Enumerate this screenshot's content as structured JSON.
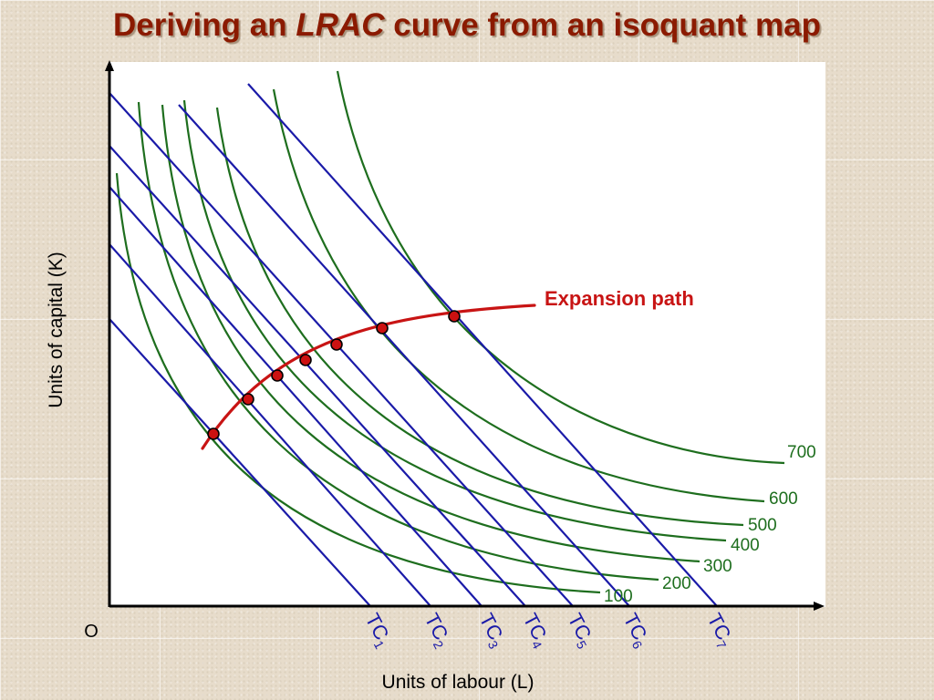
{
  "title": {
    "prefix": "Deriving an",
    "emphasis": "LRAC",
    "suffix": "curve from an isoquant map"
  },
  "axes": {
    "x_label": "Units of labour (L)",
    "y_label": "Units of capital (K)",
    "origin_label": "O"
  },
  "isoquants": [
    {
      "label": "100",
      "output": 100
    },
    {
      "label": "200",
      "output": 200
    },
    {
      "label": "300",
      "output": 300
    },
    {
      "label": "400",
      "output": 400
    },
    {
      "label": "500",
      "output": 500
    },
    {
      "label": "600",
      "output": 600
    },
    {
      "label": "700",
      "output": 700
    }
  ],
  "isocosts": [
    {
      "label": "TC",
      "sub": "1"
    },
    {
      "label": "TC",
      "sub": "2"
    },
    {
      "label": "TC",
      "sub": "3"
    },
    {
      "label": "TC",
      "sub": "4"
    },
    {
      "label": "TC",
      "sub": "5"
    },
    {
      "label": "TC",
      "sub": "6"
    },
    {
      "label": "TC",
      "sub": "7"
    }
  ],
  "expansion_path": {
    "label": "Expansion path"
  },
  "colors": {
    "title": "#8b1a00",
    "isoquant": "#1e6e1e",
    "isocost": "#1a1aa8",
    "expansion": "#c81414",
    "point_fill": "#cc1111",
    "axis": "#000000",
    "plot_bg": "#ffffff"
  }
}
